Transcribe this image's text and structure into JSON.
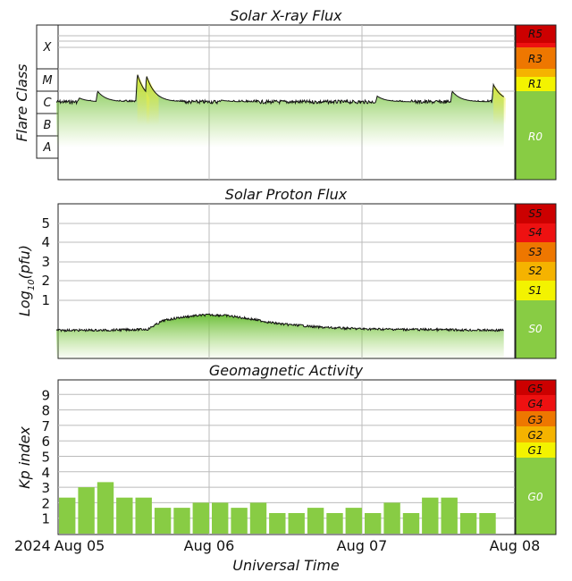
{
  "chart_data": [
    {
      "type": "area",
      "title": "Solar X-ray Flux",
      "ylabel": "Flare Class",
      "class_labels": [
        "X",
        "M",
        "C",
        "B",
        "A"
      ],
      "scale_labels": [
        "R5",
        "R3",
        "R1",
        "R0"
      ],
      "scale_colors": [
        "#cc0000",
        "#ee7700",
        "#f3f300",
        "#88cc44"
      ],
      "series_color": "#7cc242",
      "flare_color": "#f0f040",
      "baseline_class_level": "C",
      "flares": [
        {
          "t": 0.15,
          "peak_class": "C5"
        },
        {
          "t": 0.27,
          "peak_class": "M1"
        },
        {
          "t": 0.53,
          "peak_class": "M6"
        },
        {
          "t": 0.59,
          "peak_class": "M5"
        },
        {
          "t": 1.08,
          "peak_class": "C4"
        },
        {
          "t": 2.1,
          "peak_class": "C6"
        },
        {
          "t": 2.59,
          "peak_class": "M1"
        },
        {
          "t": 2.86,
          "peak_class": "M2"
        }
      ]
    },
    {
      "type": "area",
      "title": "Solar Proton Flux",
      "ylabel": "Log",
      "ylabel_sub": "10",
      "ylabel_suffix": "(pfu)",
      "yticks": [
        "1",
        "2",
        "3",
        "4",
        "5"
      ],
      "scale_labels": [
        "S5",
        "S4",
        "S3",
        "S2",
        "S1",
        "S0"
      ],
      "scale_colors": [
        "#cc0000",
        "#ee1111",
        "#ee7700",
        "#f5b300",
        "#f3f300",
        "#88cc44"
      ],
      "series_color": "#7cc242",
      "x_days": [
        0,
        0.3,
        0.6,
        0.63,
        0.7,
        0.8,
        0.9,
        1.0,
        1.1,
        1.2,
        1.3,
        1.4,
        1.5,
        1.6,
        1.7,
        1.8,
        1.9,
        2.0,
        2.2,
        2.5,
        2.8,
        2.93
      ],
      "log10_pfu": [
        -0.55,
        -0.55,
        -0.5,
        -0.35,
        -0.05,
        0.1,
        0.2,
        0.25,
        0.22,
        0.12,
        0.0,
        -0.15,
        -0.25,
        -0.3,
        -0.38,
        -0.42,
        -0.45,
        -0.48,
        -0.5,
        -0.52,
        -0.55,
        -0.55
      ]
    },
    {
      "type": "bar",
      "title": "Geomagnetic Activity",
      "ylabel": "Kp index",
      "yticks": [
        "1",
        "2",
        "3",
        "4",
        "5",
        "6",
        "7",
        "8",
        "9"
      ],
      "ylim": [
        0,
        10
      ],
      "scale_labels": [
        "G5",
        "G4",
        "G3",
        "G2",
        "G1",
        "G0"
      ],
      "scale_colors": [
        "#cc0000",
        "#ee1111",
        "#ee7700",
        "#f5b300",
        "#f3f300",
        "#88cc44"
      ],
      "bar_color": "#88cc44",
      "values": [
        2.33,
        3.0,
        3.33,
        2.33,
        2.33,
        1.67,
        1.67,
        2.0,
        2.0,
        1.67,
        2.0,
        1.33,
        1.33,
        1.67,
        1.33,
        1.67,
        1.33,
        2.0,
        1.33,
        2.33,
        2.33,
        1.33,
        1.33
      ]
    }
  ],
  "xaxis": {
    "label": "Universal Time",
    "year_label": "2024",
    "ticks": [
      "Aug 05",
      "Aug 06",
      "Aug 07",
      "Aug 08"
    ]
  }
}
